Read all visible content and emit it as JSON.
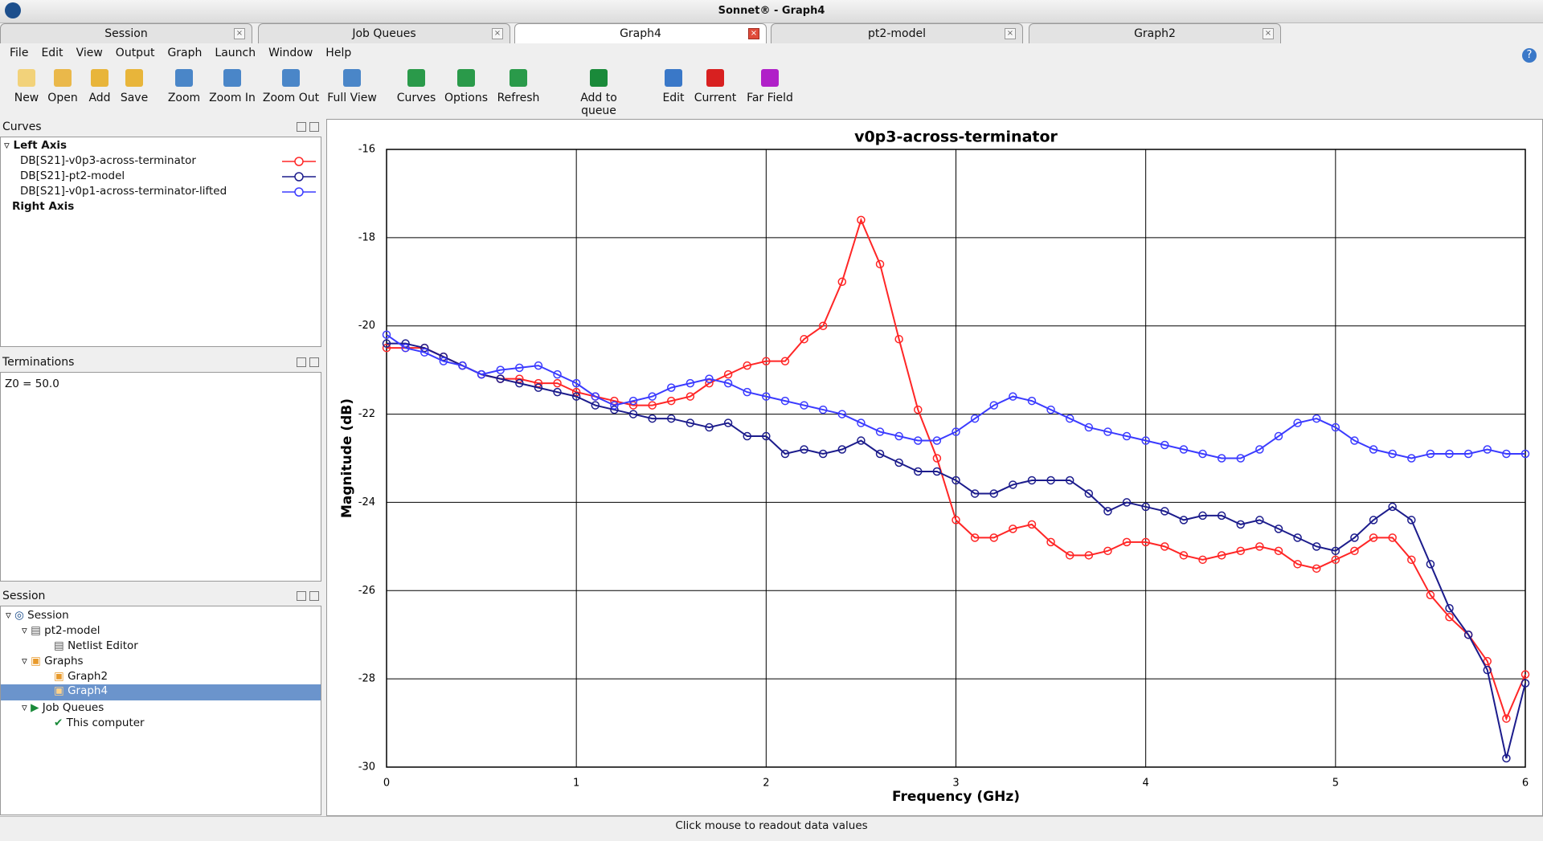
{
  "window": {
    "title": "Sonnet® - Graph4"
  },
  "tabs": [
    "Session",
    "Job Queues",
    "Graph4",
    "pt2-model",
    "Graph2"
  ],
  "menu": [
    "File",
    "Edit",
    "View",
    "Output",
    "Graph",
    "Launch",
    "Window",
    "Help"
  ],
  "toolbar": [
    "New",
    "Open",
    "Add",
    "Save",
    "Zoom",
    "Zoom In",
    "Zoom Out",
    "Full View",
    "Curves",
    "Options",
    "Refresh",
    "Add to queue",
    "Edit",
    "Current",
    "Far Field"
  ],
  "panels": {
    "curves": {
      "title": "Curves",
      "left_axis": "Left Axis",
      "right_axis": "Right Axis"
    },
    "terminations": {
      "title": "Terminations",
      "text": "Z0 = 50.0"
    },
    "session": {
      "title": "Session",
      "tree": [
        "Session",
        "pt2-model",
        "Netlist Editor",
        "Graphs",
        "Graph2",
        "Graph4",
        "Job Queues",
        "This computer"
      ]
    }
  },
  "status": "Click mouse to readout data values",
  "chart_data": {
    "type": "line",
    "title": "v0p3-across-terminator",
    "x_label": "Frequency (GHz)",
    "y_label": "Magnitude (dB)",
    "x": [
      0,
      0.1,
      0.2,
      0.3,
      0.4,
      0.5,
      0.6,
      0.7,
      0.8,
      0.9,
      1,
      1.1,
      1.2,
      1.3,
      1.4,
      1.5,
      1.6,
      1.7,
      1.8,
      1.9,
      2,
      2.1,
      2.2,
      2.3,
      2.4,
      2.5,
      2.6,
      2.7,
      2.8,
      2.9,
      3,
      3.1,
      3.2,
      3.3,
      3.4,
      3.5,
      3.6,
      3.7,
      3.8,
      3.9,
      4,
      4.1,
      4.2,
      4.3,
      4.4,
      4.5,
      4.6,
      4.7,
      4.8,
      4.9,
      5,
      5.1,
      5.2,
      5.3,
      5.4,
      5.5,
      5.6,
      5.7,
      5.8,
      5.9,
      6
    ],
    "series": [
      {
        "name": "DB[S21]-v0p3-across-terminator",
        "color": "#ff2626",
        "values": [
          -20.5,
          -20.5,
          -20.5,
          -20.7,
          -20.9,
          -21.1,
          -21.2,
          -21.2,
          -21.3,
          -21.3,
          -21.5,
          -21.6,
          -21.7,
          -21.8,
          -21.8,
          -21.7,
          -21.6,
          -21.3,
          -21.1,
          -20.9,
          -20.8,
          -20.8,
          -20.3,
          -20.0,
          -19.0,
          -17.6,
          -18.6,
          -20.3,
          -21.9,
          -23.0,
          -24.4,
          -24.8,
          -24.8,
          -24.6,
          -24.5,
          -24.9,
          -25.2,
          -25.2,
          -25.1,
          -24.9,
          -24.9,
          -25.0,
          -25.2,
          -25.3,
          -25.2,
          -25.1,
          -25.0,
          -25.1,
          -25.4,
          -25.5,
          -25.3,
          -25.1,
          -24.8,
          -24.8,
          -25.3,
          -26.1,
          -26.6,
          -27.0,
          -27.6,
          -28.9,
          -27.9
        ]
      },
      {
        "name": "DB[S21]-pt2-model",
        "color": "#1c1c8c",
        "values": [
          -20.4,
          -20.4,
          -20.5,
          -20.7,
          -20.9,
          -21.1,
          -21.2,
          -21.3,
          -21.4,
          -21.5,
          -21.6,
          -21.8,
          -21.9,
          -22.0,
          -22.1,
          -22.1,
          -22.2,
          -22.3,
          -22.2,
          -22.5,
          -22.5,
          -22.9,
          -22.8,
          -22.9,
          -22.8,
          -22.6,
          -22.9,
          -23.1,
          -23.3,
          -23.3,
          -23.5,
          -23.8,
          -23.8,
          -23.6,
          -23.5,
          -23.5,
          -23.5,
          -23.8,
          -24.2,
          -24.0,
          -24.1,
          -24.2,
          -24.4,
          -24.3,
          -24.3,
          -24.5,
          -24.4,
          -24.6,
          -24.8,
          -25.0,
          -25.1,
          -24.8,
          -24.4,
          -24.1,
          -24.4,
          -25.4,
          -26.4,
          -27.0,
          -27.8,
          -29.8,
          -28.1
        ]
      },
      {
        "name": "DB[S21]-v0p1-across-terminator-lifted",
        "color": "#3b3bff",
        "values": [
          -20.2,
          -20.5,
          -20.6,
          -20.8,
          -20.9,
          -21.1,
          -21.0,
          -20.95,
          -20.9,
          -21.1,
          -21.3,
          -21.6,
          -21.8,
          -21.7,
          -21.6,
          -21.4,
          -21.3,
          -21.2,
          -21.3,
          -21.5,
          -21.6,
          -21.7,
          -21.8,
          -21.9,
          -22.0,
          -22.2,
          -22.4,
          -22.5,
          -22.6,
          -22.6,
          -22.4,
          -22.1,
          -21.8,
          -21.6,
          -21.7,
          -21.9,
          -22.1,
          -22.3,
          -22.4,
          -22.5,
          -22.6,
          -22.7,
          -22.8,
          -22.9,
          -23.0,
          -23.0,
          -22.8,
          -22.5,
          -22.2,
          -22.1,
          -22.3,
          -22.6,
          -22.8,
          -22.9,
          -23.0,
          -22.9,
          -22.9,
          -22.9,
          -22.8,
          -22.9,
          -22.9
        ]
      }
    ],
    "xlim": [
      0,
      6
    ],
    "xticks": [
      0,
      1,
      2,
      3,
      4,
      5,
      6
    ],
    "ylim": [
      -30,
      -16
    ],
    "yticks": [
      -16,
      -18,
      -20,
      -22,
      -24,
      -26,
      -28,
      -30
    ],
    "grid": true
  }
}
